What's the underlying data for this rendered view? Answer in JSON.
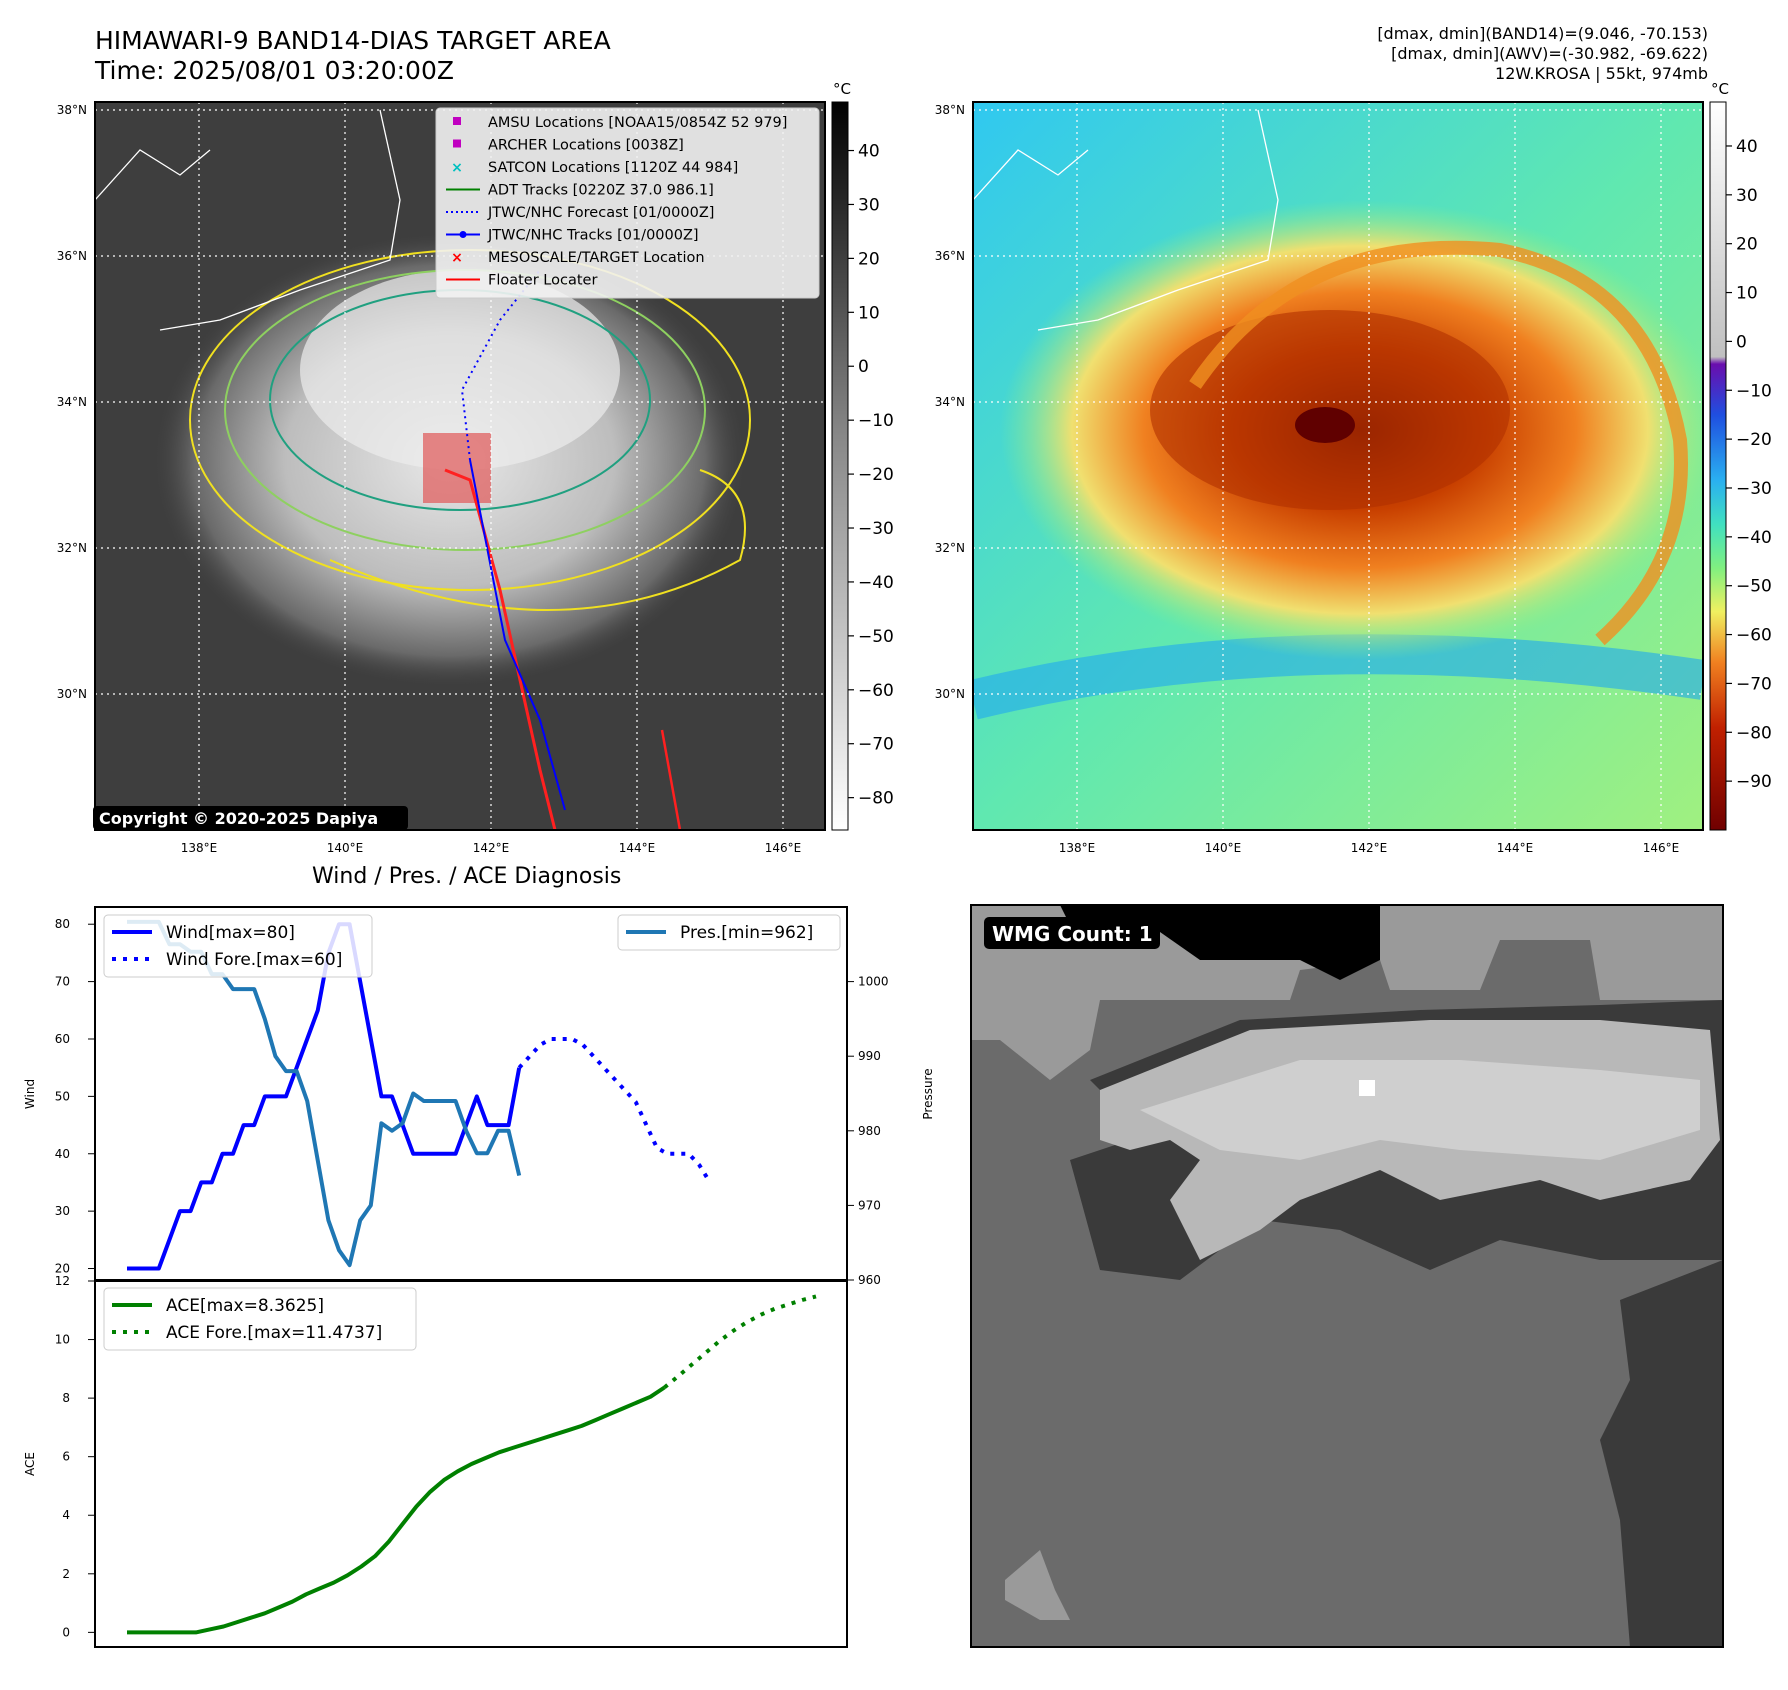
{
  "header": {
    "title_line1": "HIMAWARI-9 BAND14-DIAS TARGET AREA",
    "title_line2": "Time: 2025/08/01 03:20:00Z",
    "stats_line1": "[dmax, dmin](BAND14)=(9.046, -70.153)",
    "stats_line2": "[dmax, dmin](AWV)=(-30.982, -69.622)",
    "storm_line": "12W.KROSA | 55kt, 974mb"
  },
  "maps": {
    "lat_labels": [
      "38°N",
      "36°N",
      "34°N",
      "32°N",
      "30°N"
    ],
    "lon_labels": [
      "138°E",
      "140°E",
      "142°E",
      "144°E",
      "146°E"
    ],
    "colorbar_unit": "°C",
    "ir_colorbar_ticks": [
      40,
      30,
      20,
      10,
      0,
      -10,
      -20,
      -30,
      -40,
      -50,
      -60,
      -70,
      -80
    ],
    "awv_colorbar_ticks": [
      40,
      30,
      20,
      10,
      0,
      -10,
      -20,
      -30,
      -40,
      -50,
      -60,
      -70,
      -80,
      -90
    ],
    "copyright": "Copyright © 2020-2025 Dapiya",
    "legend": [
      {
        "label": "AMSU Locations [NOAA15/0854Z 52 979]",
        "symbol": "square",
        "color": "#c000c0"
      },
      {
        "label": "ARCHER Locations [0038Z]",
        "symbol": "square",
        "color": "#c000c0"
      },
      {
        "label": "SATCON Locations [1120Z 44 984]",
        "symbol": "x",
        "color": "#00c0c0"
      },
      {
        "label": "ADT Tracks [0220Z 37.0 986.1]",
        "symbol": "line",
        "color": "#008000"
      },
      {
        "label": "JTWC/NHC Forecast [01/0000Z]",
        "symbol": "dotted",
        "color": "#0000ff"
      },
      {
        "label": "JTWC/NHC Tracks [01/0000Z]",
        "symbol": "line-dot",
        "color": "#0000ff"
      },
      {
        "label": "MESOSCALE/TARGET Location",
        "symbol": "x",
        "color": "#ff0000"
      },
      {
        "label": "Floater Locater",
        "symbol": "line",
        "color": "#ff0000"
      }
    ]
  },
  "wmg": {
    "label": "WMG Count: 1"
  },
  "chart_data": [
    {
      "type": "line",
      "title": "Wind / Pres. / ACE Diagnosis",
      "ylabel": "Wind",
      "ylabel_right": "Pressure",
      "ylim": [
        18,
        83
      ],
      "ylim_right": [
        960,
        1010
      ],
      "yticks": [
        20,
        30,
        40,
        50,
        60,
        70,
        80
      ],
      "yticks_right": [
        960,
        970,
        980,
        990,
        1000
      ],
      "legend_left": [
        "Wind[max=80]",
        "Wind Fore.[max=60]"
      ],
      "legend_right": [
        "Pres.[min=962]"
      ],
      "x": [
        0,
        1,
        2,
        3,
        4,
        5,
        6,
        7,
        8,
        9,
        10,
        11,
        12,
        13,
        14,
        15,
        16,
        17,
        18,
        19,
        20,
        21,
        22,
        23,
        24,
        25,
        26,
        27,
        28,
        29,
        30,
        31,
        32,
        33,
        34,
        35,
        36,
        37,
        38,
        39,
        40,
        41,
        42,
        43,
        44,
        45,
        46,
        47,
        48,
        49,
        50,
        51,
        52,
        53,
        54,
        55,
        56,
        57,
        58,
        59,
        60,
        61,
        62,
        63,
        64
      ],
      "series": [
        {
          "name": "Wind[max=80]",
          "color": "#0000ff",
          "style": "solid",
          "values": [
            20,
            20,
            20,
            20,
            25,
            30,
            30,
            35,
            35,
            40,
            40,
            45,
            45,
            50,
            50,
            50,
            55,
            60,
            65,
            75,
            80,
            80,
            70,
            60,
            50,
            50,
            45,
            40,
            40,
            40,
            40,
            40,
            45,
            50,
            45,
            45,
            45,
            55,
            null,
            null,
            null,
            null,
            null,
            null,
            null,
            null,
            null,
            null,
            null,
            null,
            null,
            null,
            null,
            null,
            null,
            null,
            null,
            null,
            null,
            null,
            null,
            null,
            null,
            null,
            null
          ]
        },
        {
          "name": "Wind Fore.[max=60]",
          "color": "#0000ff",
          "style": "dotted",
          "values": [
            null,
            null,
            null,
            null,
            null,
            null,
            null,
            null,
            null,
            null,
            null,
            null,
            null,
            null,
            null,
            null,
            null,
            null,
            null,
            null,
            null,
            null,
            null,
            null,
            null,
            null,
            null,
            null,
            null,
            null,
            null,
            null,
            null,
            null,
            null,
            null,
            null,
            55,
            57,
            59,
            60,
            60,
            60,
            59,
            57,
            55,
            53,
            51,
            49,
            45,
            41,
            40,
            40,
            40,
            38,
            35,
            null,
            null,
            null,
            null,
            null,
            null,
            null,
            null,
            null
          ]
        },
        {
          "name": "Pres.[min=962]",
          "axis": "right",
          "color": "#1f77b4",
          "style": "solid",
          "values": [
            1008,
            1008,
            1008,
            1008,
            1005,
            1005,
            1004,
            1004,
            1001,
            1001,
            999,
            999,
            999,
            995,
            990,
            988,
            988,
            984,
            976,
            968,
            964,
            962,
            968,
            970,
            981,
            980,
            981,
            985,
            984,
            984,
            984,
            984,
            980,
            977,
            977,
            980,
            980,
            974,
            null,
            null,
            null,
            null,
            null,
            null,
            null,
            null,
            null,
            null,
            null,
            null,
            null,
            null,
            null,
            null,
            null,
            null,
            null,
            null,
            null,
            null,
            null,
            null,
            null,
            null,
            null
          ]
        }
      ]
    },
    {
      "type": "line",
      "ylabel": "ACE",
      "ylim": [
        -0.5,
        12
      ],
      "yticks": [
        0,
        2,
        4,
        6,
        8,
        10,
        12
      ],
      "legend": [
        "ACE[max=8.3625]",
        "ACE Fore.[max=11.4737]"
      ],
      "series": [
        {
          "name": "ACE[max=8.3625]",
          "color": "#008000",
          "style": "solid",
          "values": [
            0,
            0,
            0,
            0,
            0,
            0,
            0.1,
            0.2,
            0.35,
            0.5,
            0.65,
            0.85,
            1.05,
            1.3,
            1.5,
            1.7,
            1.95,
            2.25,
            2.6,
            3.1,
            3.7,
            4.3,
            4.8,
            5.2,
            5.5,
            5.75,
            5.95,
            6.15,
            6.3,
            6.45,
            6.6,
            6.75,
            6.9,
            7.05,
            7.25,
            7.45,
            7.65,
            7.85,
            8.05,
            8.3625
          ]
        },
        {
          "name": "ACE Fore.[max=11.4737]",
          "color": "#008000",
          "style": "dotted",
          "values": [
            null,
            null,
            null,
            null,
            null,
            null,
            null,
            null,
            null,
            null,
            null,
            null,
            null,
            null,
            null,
            null,
            null,
            null,
            null,
            null,
            null,
            null,
            null,
            null,
            null,
            null,
            null,
            null,
            null,
            null,
            null,
            null,
            null,
            null,
            null,
            null,
            null,
            null,
            null,
            8.3625,
            8.75,
            9.15,
            9.55,
            9.95,
            10.3,
            10.6,
            10.85,
            11.05,
            11.2,
            11.35,
            11.4737
          ]
        }
      ]
    }
  ]
}
